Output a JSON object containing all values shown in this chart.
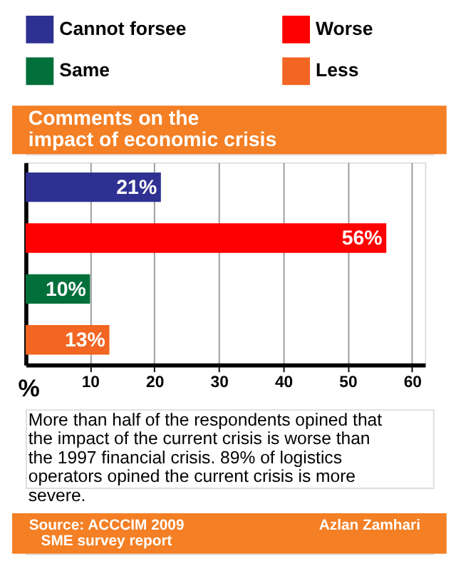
{
  "chart_data": {
    "type": "bar",
    "orientation": "horizontal",
    "title": "Comments on the\nimpact of economic crisis",
    "xlabel": "%",
    "categories": [
      null,
      null,
      null,
      null
    ],
    "series": [
      {
        "name": "Cannot forsee",
        "color": "#2e3192",
        "values": [
          21,
          null,
          null,
          null
        ],
        "value_labels": [
          "21%",
          null,
          null,
          null
        ]
      },
      {
        "name": "Worse",
        "color": "#ff0000",
        "values": [
          null,
          56,
          null,
          null
        ],
        "value_labels": [
          null,
          "56%",
          null,
          null
        ]
      },
      {
        "name": "Same",
        "color": "#006f3a",
        "values": [
          null,
          null,
          10,
          null
        ],
        "value_labels": [
          null,
          null,
          "10%",
          null
        ]
      },
      {
        "name": "Less",
        "color": "#f26522",
        "values": [
          null,
          null,
          null,
          13
        ],
        "value_labels": [
          null,
          null,
          null,
          "13%"
        ]
      }
    ],
    "xlim": [
      0,
      62
    ],
    "xticks": [
      10,
      20,
      30,
      40,
      50,
      60
    ],
    "grid": "x",
    "legend": "top",
    "tick_labels": "x",
    "annotations": [
      "More than half of the respondents opined that the impact of the current crisis is worse than the 1997 financial crisis.  89% of logistics operators opined the current crisis is more severe.",
      "Source: ACCCIM 2009 SME survey report",
      "Azlan Zamhari"
    ]
  }
}
